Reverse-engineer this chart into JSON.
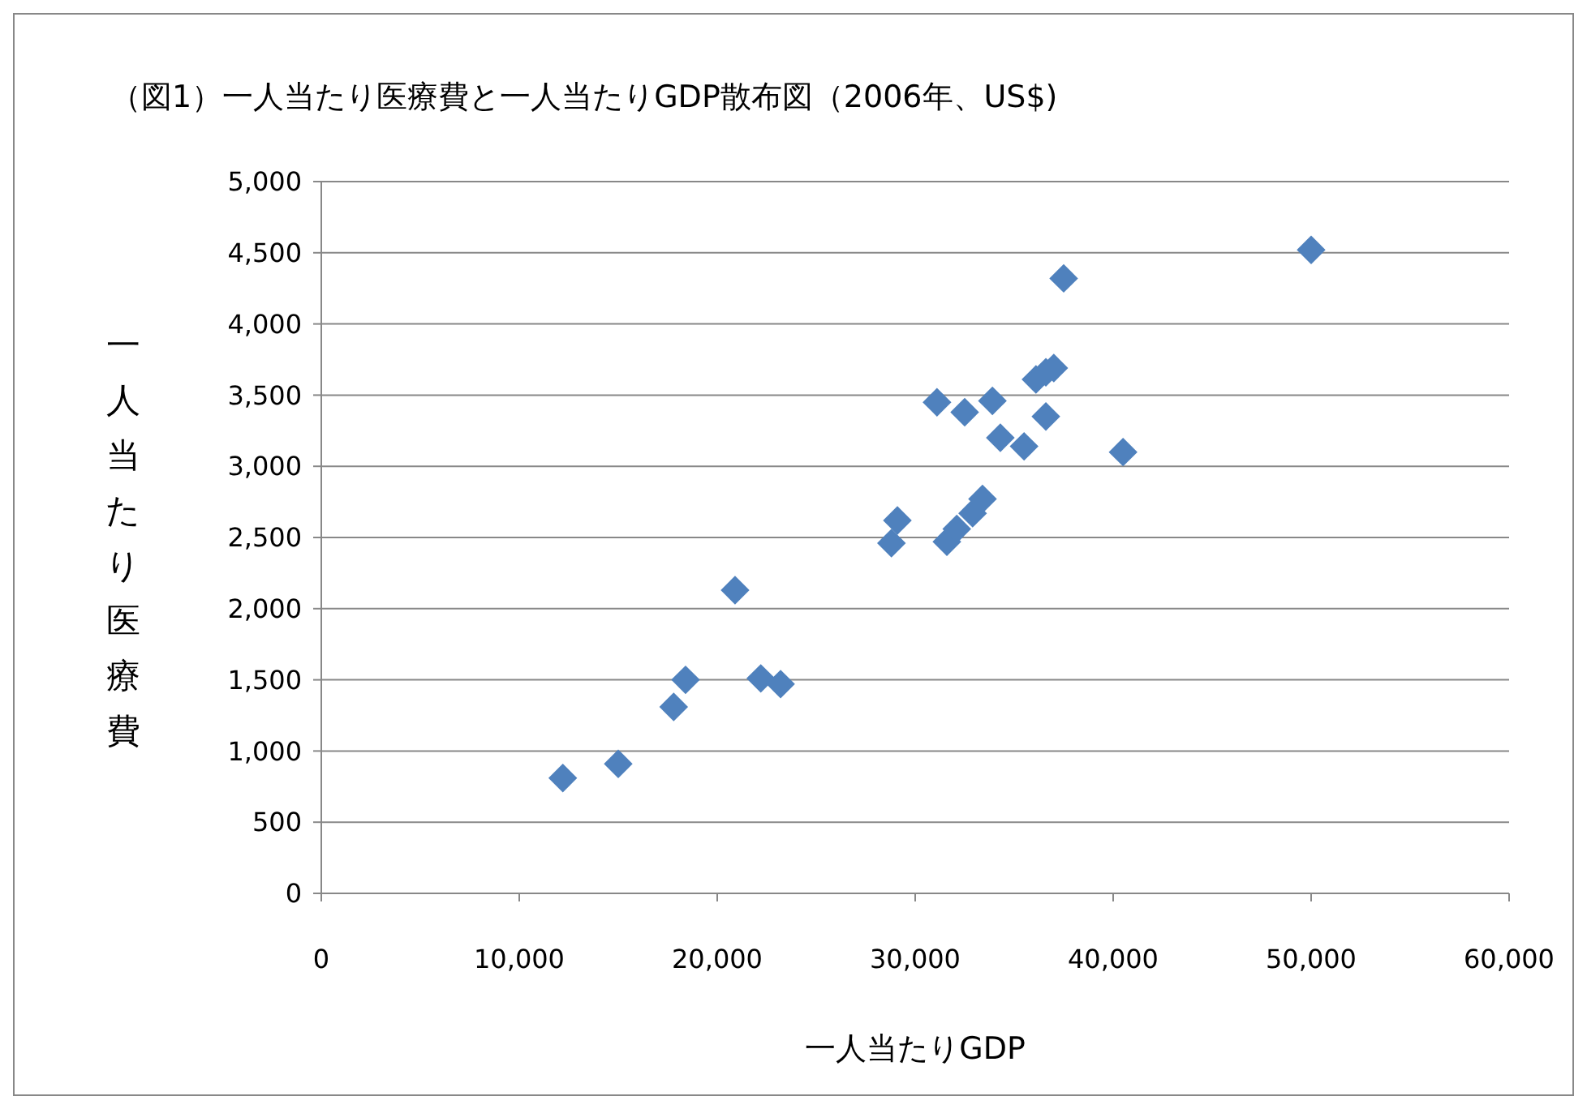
{
  "chart_data": {
    "type": "scatter",
    "title": "（図1）一人当たり医療費と一人当たりGDP散布図（2006年、US$)",
    "xlabel": "一人当たりGDP",
    "ylabel": "一人当たり医療費",
    "x": [
      12200,
      15000,
      17800,
      18400,
      20900,
      22200,
      23200,
      28800,
      29100,
      31100,
      31600,
      32100,
      32500,
      32900,
      33400,
      33900,
      34300,
      35500,
      36100,
      36600,
      37000,
      36600,
      37500,
      40500,
      50000
    ],
    "series": [
      {
        "color": "#4f81bd",
        "values": [
          810,
          910,
          1310,
          1500,
          2130,
          1510,
          1470,
          2460,
          2620,
          3450,
          2470,
          2560,
          3380,
          2670,
          2770,
          3460,
          3200,
          3140,
          3610,
          3660,
          3690,
          3350,
          4320,
          3100,
          4520
        ]
      }
    ],
    "xlim": [
      0,
      60000
    ],
    "xticks": [
      {
        "value": 0,
        "label": "0"
      },
      {
        "value": 10000,
        "label": "10,000"
      },
      {
        "value": 20000,
        "label": "20,000"
      },
      {
        "value": 30000,
        "label": "30,000"
      },
      {
        "value": 40000,
        "label": "40,000"
      },
      {
        "value": 50000,
        "label": "50,000"
      },
      {
        "value": 60000,
        "label": "60,000"
      }
    ],
    "ylim": [
      0,
      5000
    ],
    "yticks": [
      {
        "value": 0,
        "label": "0"
      },
      {
        "value": 500,
        "label": "500"
      },
      {
        "value": 1000,
        "label": "1,000"
      },
      {
        "value": 1500,
        "label": "1,500"
      },
      {
        "value": 2000,
        "label": "2,000"
      },
      {
        "value": 2500,
        "label": "2,500"
      },
      {
        "value": 3000,
        "label": "3,000"
      },
      {
        "value": 3500,
        "label": "3,500"
      },
      {
        "value": 4000,
        "label": "4,000"
      },
      {
        "value": 4500,
        "label": "4,500"
      },
      {
        "value": 5000,
        "label": "5,000"
      }
    ],
    "grid": "y",
    "marker": "diamond"
  }
}
